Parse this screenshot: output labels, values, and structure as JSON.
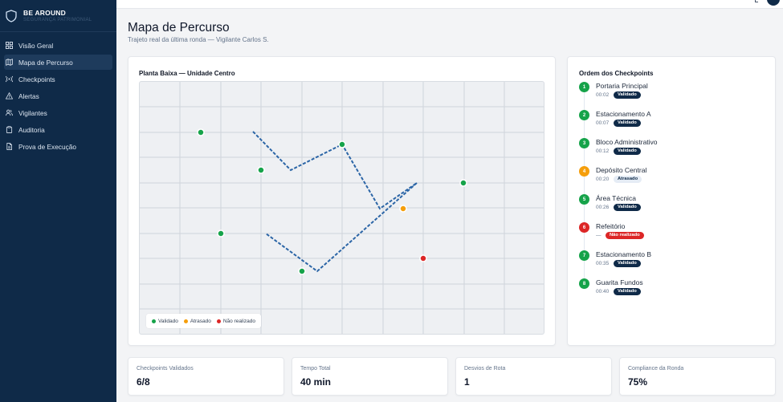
{
  "brand": {
    "title": "BE AROUND",
    "subtitle": "SEGURANÇA PATRIMONIAL"
  },
  "nav": [
    {
      "label": "Visão Geral",
      "icon": "grid-icon",
      "active": false
    },
    {
      "label": "Mapa de Percurso",
      "icon": "map-icon",
      "active": true
    },
    {
      "label": "Checkpoints",
      "icon": "signal-icon",
      "active": false
    },
    {
      "label": "Alertas",
      "icon": "alert-triangle-icon",
      "active": false
    },
    {
      "label": "Vigilantes",
      "icon": "users-icon",
      "active": false
    },
    {
      "label": "Auditoria",
      "icon": "clipboard-icon",
      "active": false
    },
    {
      "label": "Prova de Execução",
      "icon": "file-icon",
      "active": false
    }
  ],
  "header": {
    "title": "Mapa de Percurso",
    "subtitle": "Trajeto real da última ronda — Vigilante Carlos S."
  },
  "map": {
    "title": "Planta Baixa — Unidade Centro",
    "legend": [
      {
        "label": "Validado",
        "color": "#16a34a"
      },
      {
        "label": "Atrasado",
        "color": "#f59e0b"
      },
      {
        "label": "Não realizado",
        "color": "#dc2626"
      }
    ]
  },
  "checkpoints": {
    "title": "Ordem dos Checkpoints",
    "items": [
      {
        "num": "1",
        "name": "Portaria Principal",
        "time": "00:02",
        "status": "Validado"
      },
      {
        "num": "2",
        "name": "Estacionamento A",
        "time": "00:07",
        "status": "Validado"
      },
      {
        "num": "3",
        "name": "Bloco Administrativo",
        "time": "00:12",
        "status": "Validado"
      },
      {
        "num": "4",
        "name": "Depósito Central",
        "time": "00:20",
        "status": "Atrasado"
      },
      {
        "num": "5",
        "name": "Área Técnica",
        "time": "00:26",
        "status": "Validado"
      },
      {
        "num": "6",
        "name": "Refeitório",
        "time": "—",
        "status": "Não realizado"
      },
      {
        "num": "7",
        "name": "Estacionamento B",
        "time": "00:35",
        "status": "Validado"
      },
      {
        "num": "8",
        "name": "Guarita Fundos",
        "time": "00:40",
        "status": "Validado"
      }
    ]
  },
  "stats": [
    {
      "label": "Checkpoints Validados",
      "value": "6/8"
    },
    {
      "label": "Tempo Total",
      "value": "40 min"
    },
    {
      "label": "Desvios de Rota",
      "value": "1"
    },
    {
      "label": "Compliance da Ronda",
      "value": "75%"
    }
  ],
  "colors": {
    "validado": "#16a34a",
    "atrasado": "#f59e0b",
    "nao_realizado": "#dc2626",
    "route": "#2b65a6",
    "sidebar": "#0f2a48"
  }
}
